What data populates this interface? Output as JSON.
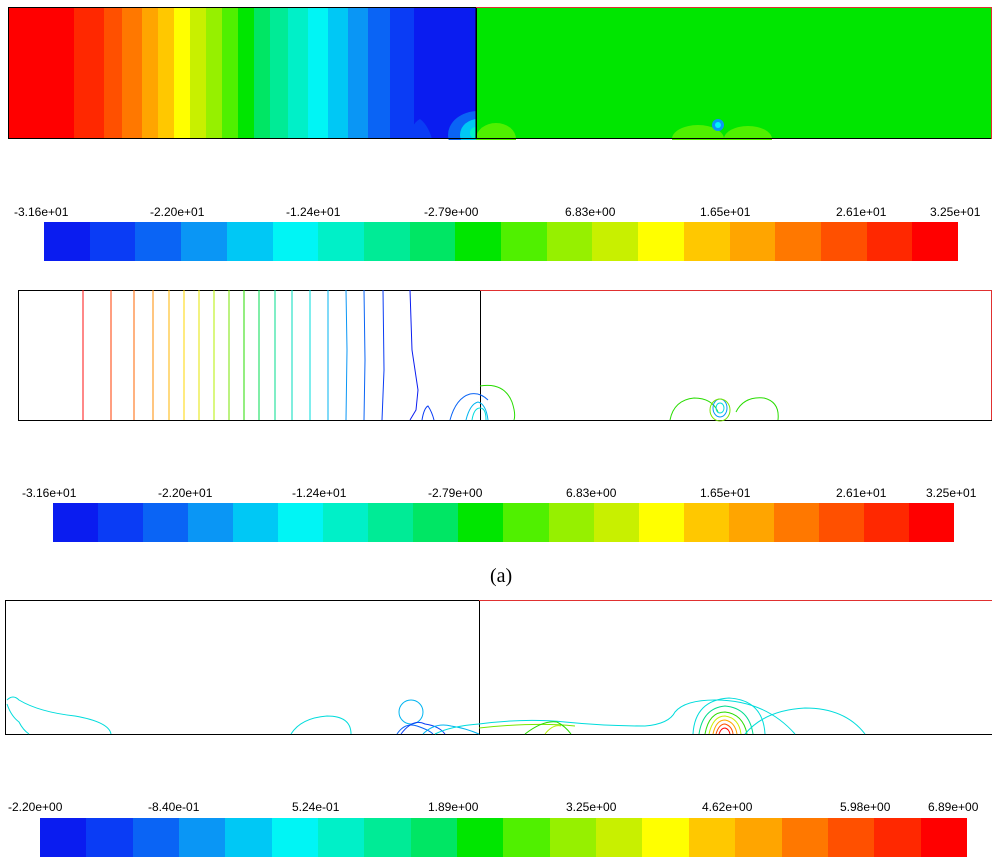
{
  "caption": "(a)",
  "colormap": [
    "#0a1cf0",
    "#0a3cf5",
    "#0a64f5",
    "#0a96f5",
    "#00c8f5",
    "#00f5f5",
    "#00f0c8",
    "#00eb96",
    "#00e664",
    "#00e600",
    "#50f000",
    "#96f000",
    "#c8f000",
    "#ffff00",
    "#ffc800",
    "#ffa500",
    "#ff7800",
    "#ff5000",
    "#ff2800",
    "#ff0000"
  ],
  "colorbars": [
    {
      "ticks": [
        "-3.16e+01",
        "-2.20e+01",
        "-1.24e+01",
        "-2.79e+00",
        "6.83e+00",
        "1.65e+01",
        "2.61e+01",
        "3.25e+01"
      ]
    },
    {
      "ticks": [
        "-3.16e+01",
        "-2.20e+01",
        "-1.24e+01",
        "-2.79e+00",
        "6.83e+00",
        "1.65e+01",
        "2.61e+01",
        "3.25e+01"
      ]
    },
    {
      "ticks": [
        "-2.20e+00",
        "-8.40e-01",
        "5.24e-01",
        "1.89e+00",
        "3.25e+00",
        "4.62e+00",
        "5.98e+00",
        "6.89e+00"
      ]
    }
  ]
}
